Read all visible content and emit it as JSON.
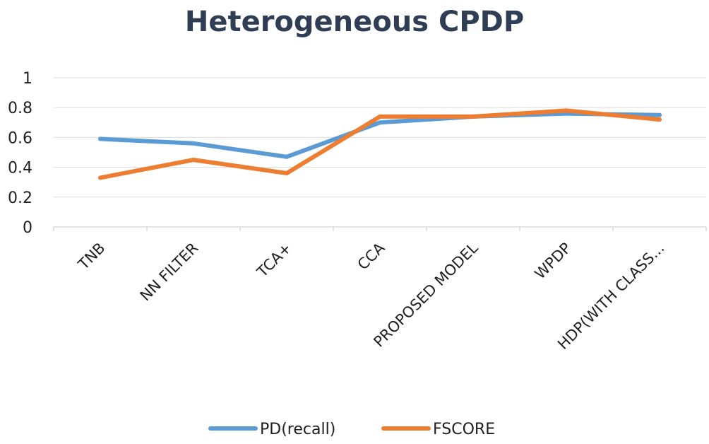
{
  "chart_data": {
    "type": "line",
    "title": "Heterogeneous CPDP",
    "categories": [
      "TNB",
      "NN FILTER",
      "TCA+",
      "CCA",
      "PROPOSED MODEL",
      "WPDP",
      "HDP(WITH CLASS..."
    ],
    "series": [
      {
        "name": "PD(recall)",
        "color": "#5b9bd5",
        "values": [
          0.59,
          0.56,
          0.47,
          0.7,
          0.74,
          0.76,
          0.75
        ]
      },
      {
        "name": "FSCORE",
        "color": "#ed7d31",
        "values": [
          0.33,
          0.45,
          0.36,
          0.74,
          0.74,
          0.78,
          0.72
        ]
      }
    ],
    "ylim": [
      0,
      1
    ],
    "yticks": [
      "0",
      "0.2",
      "0.4",
      "0.6",
      "0.8",
      "1"
    ],
    "xlabel": "",
    "ylabel": "",
    "grid": true,
    "legend_position": "bottom"
  }
}
